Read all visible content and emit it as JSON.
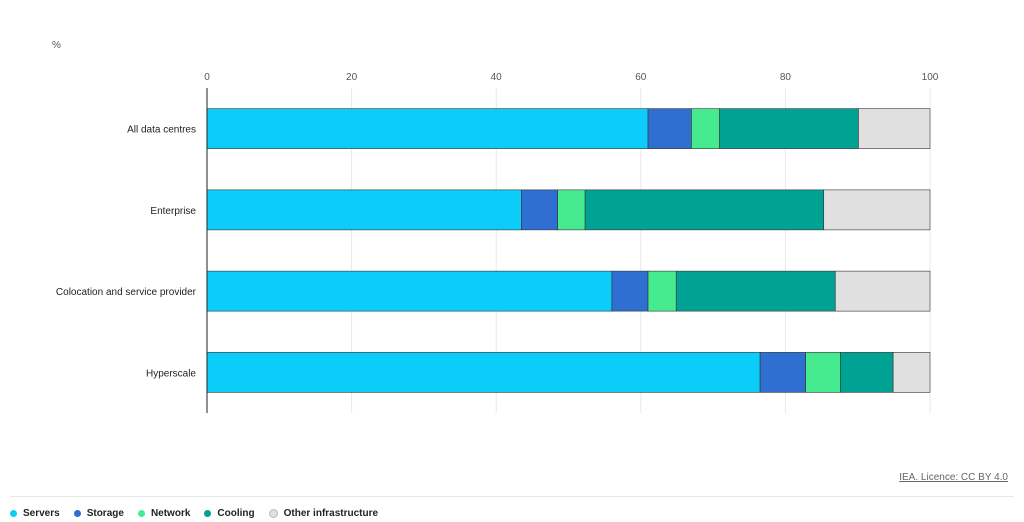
{
  "unit_label": "%",
  "credit": "IEA. Licence: CC BY 4.0",
  "colors": {
    "Servers": "#0ccdf9",
    "Storage": "#2e6fd1",
    "Network": "#47eb8f",
    "Cooling": "#00a293",
    "Other infrastructure": "#e0e0e0"
  },
  "chart_data": {
    "type": "bar",
    "orientation": "horizontal",
    "stacked": true,
    "categories": [
      "All data centres",
      "Enterprise",
      "Colocation and service provider",
      "Hyperscale"
    ],
    "series": [
      {
        "name": "Servers",
        "values": [
          61,
          43.5,
          56,
          76.5
        ]
      },
      {
        "name": "Storage",
        "values": [
          6,
          5,
          5,
          6.3
        ]
      },
      {
        "name": "Network",
        "values": [
          3.9,
          3.8,
          3.9,
          4.8
        ]
      },
      {
        "name": "Cooling",
        "values": [
          19.2,
          33,
          22,
          7.3
        ]
      },
      {
        "name": "Other infrastructure",
        "values": [
          9.9,
          14.7,
          13.1,
          5.1
        ]
      }
    ],
    "xlim": [
      0,
      100
    ],
    "xticks": [
      0,
      20,
      40,
      60,
      80,
      100
    ],
    "ylabel": "%",
    "grid": true,
    "legend_position": "bottom-left"
  }
}
